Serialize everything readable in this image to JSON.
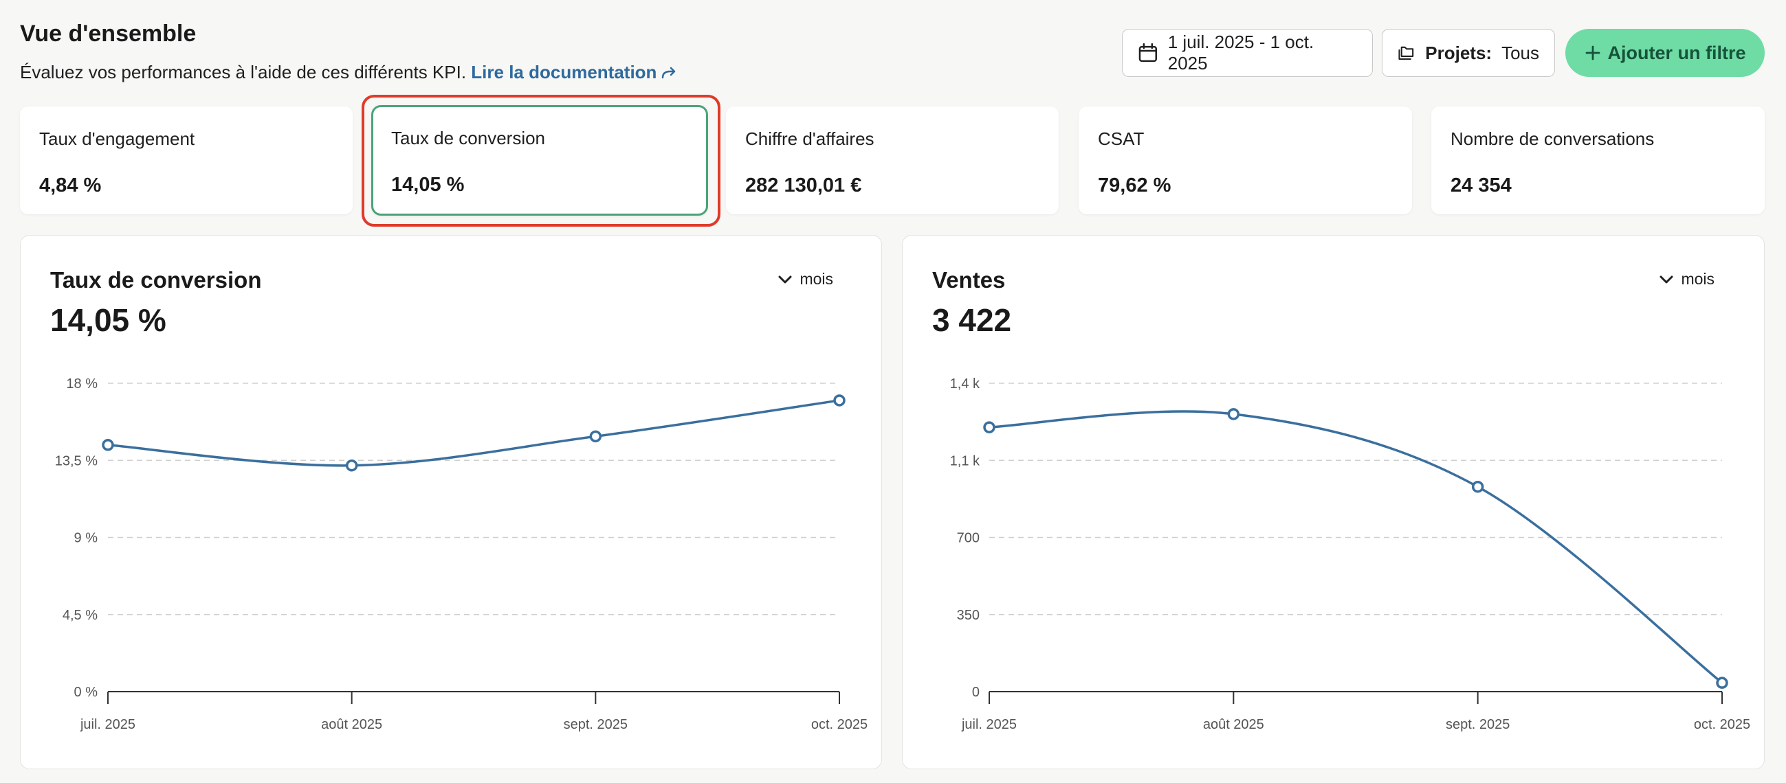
{
  "header": {
    "title": "Vue d'ensemble",
    "subtitle": "Évaluez vos performances à l'aide de ces différents KPI.",
    "doc_link": "Lire la documentation"
  },
  "filters": {
    "date_range": "1 juil. 2025 - 1 oct. 2025",
    "projects_label": "Projets:",
    "projects_value": "Tous",
    "add_filter": "Ajouter un filtre"
  },
  "kpis": [
    {
      "label": "Taux d'engagement",
      "value": "4,84 %"
    },
    {
      "label": "Taux de conversion",
      "value": "14,05 %",
      "selected": true
    },
    {
      "label": "Chiffre d'affaires",
      "value": "282 130,01 €"
    },
    {
      "label": "CSAT",
      "value": "79,62 %"
    },
    {
      "label": "Nombre de conversations",
      "value": "24 354"
    }
  ],
  "panels": {
    "left": {
      "title": "Taux de conversion",
      "value": "14,05 %",
      "period": "mois"
    },
    "right": {
      "title": "Ventes",
      "value": "3 422",
      "period": "mois"
    }
  },
  "colors": {
    "line": "#3a6f9e",
    "accent": "#6fdca5",
    "selection": "#e03a2a",
    "selected_border": "#4aa37a"
  },
  "chart_data": [
    {
      "type": "line",
      "title": "Taux de conversion",
      "categories": [
        "juil. 2025",
        "août 2025",
        "sept. 2025",
        "oct. 2025"
      ],
      "values": [
        14.4,
        13.2,
        14.9,
        17.0
      ],
      "yticks": [
        "0 %",
        "4,5 %",
        "9 %",
        "13,5 %",
        "18 %"
      ],
      "ylim": [
        0,
        18
      ],
      "grid": true
    },
    {
      "type": "line",
      "title": "Ventes",
      "categories": [
        "juil. 2025",
        "août 2025",
        "sept. 2025",
        "oct. 2025"
      ],
      "values": [
        1200,
        1260,
        930,
        40
      ],
      "yticks": [
        "0",
        "350",
        "700",
        "1,1 k",
        "1,4 k"
      ],
      "ylim": [
        0,
        1400
      ],
      "grid": true
    }
  ]
}
